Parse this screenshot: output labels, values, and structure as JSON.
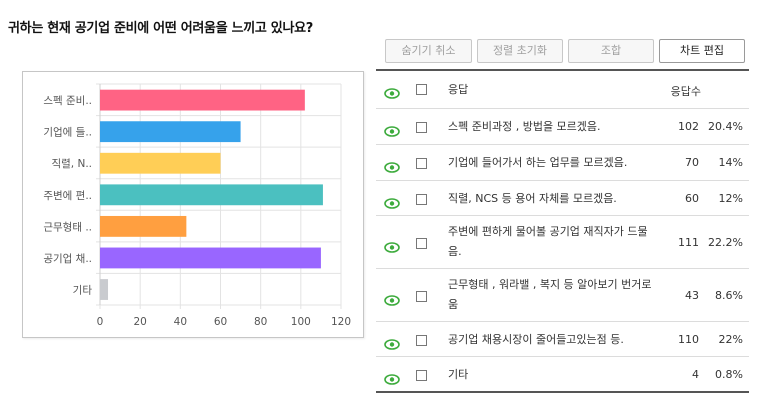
{
  "question": "귀하는 현재 공기업 준비에 어떤 어려움을 느끼고 있나요?",
  "toolbar": {
    "hide_cancel": "숨기기 취소",
    "sort_reset": "정렬 초기화",
    "combine": "조합",
    "chart_edit": "차트 편집"
  },
  "table": {
    "header_response": "응답",
    "header_count": "응답수",
    "rows": [
      {
        "label": "스펙 준비과정 , 방법을 모르겠음.",
        "count": "102",
        "percent": "20.4%"
      },
      {
        "label": "기업에 들어가서 하는 업무를 모르겠음.",
        "count": "70",
        "percent": "14%"
      },
      {
        "label": "직렬, NCS 등 용어 자체를 모르겠음.",
        "count": "60",
        "percent": "12%"
      },
      {
        "label": "주변에 편하게 물어볼 공기업 재직자가 드물음.",
        "count": "111",
        "percent": "22.2%"
      },
      {
        "label": "근무형태 , 워라밸 , 복지 등 알아보기 번거로움",
        "count": "43",
        "percent": "8.6%"
      },
      {
        "label": "공기업 채용시장이 줄어들고있는점 등.",
        "count": "110",
        "percent": "22%"
      },
      {
        "label": "기타",
        "count": "4",
        "percent": "0.8%"
      }
    ]
  },
  "chart_data": {
    "type": "bar",
    "orientation": "horizontal",
    "categories": [
      "스펙 준비..",
      "기업에 들..",
      "직렬, N..",
      "주변에 편..",
      "근무형태 ..",
      "공기업 채..",
      "기타"
    ],
    "values": [
      102,
      70,
      60,
      111,
      43,
      110,
      4
    ],
    "colors": [
      "#ff6384",
      "#36a2eb",
      "#ffce56",
      "#4bc0c0",
      "#ff9f40",
      "#9966ff",
      "#c9cbcf"
    ],
    "xlim": [
      0,
      120
    ],
    "xticks": [
      "0",
      "20",
      "40",
      "60",
      "80",
      "100",
      "120"
    ],
    "grid": true
  },
  "colors": {
    "eye_icon": "#3dab3d",
    "table_rule": "#555555"
  },
  "icons": {
    "visibility": "eye-icon",
    "select": "checkbox"
  }
}
